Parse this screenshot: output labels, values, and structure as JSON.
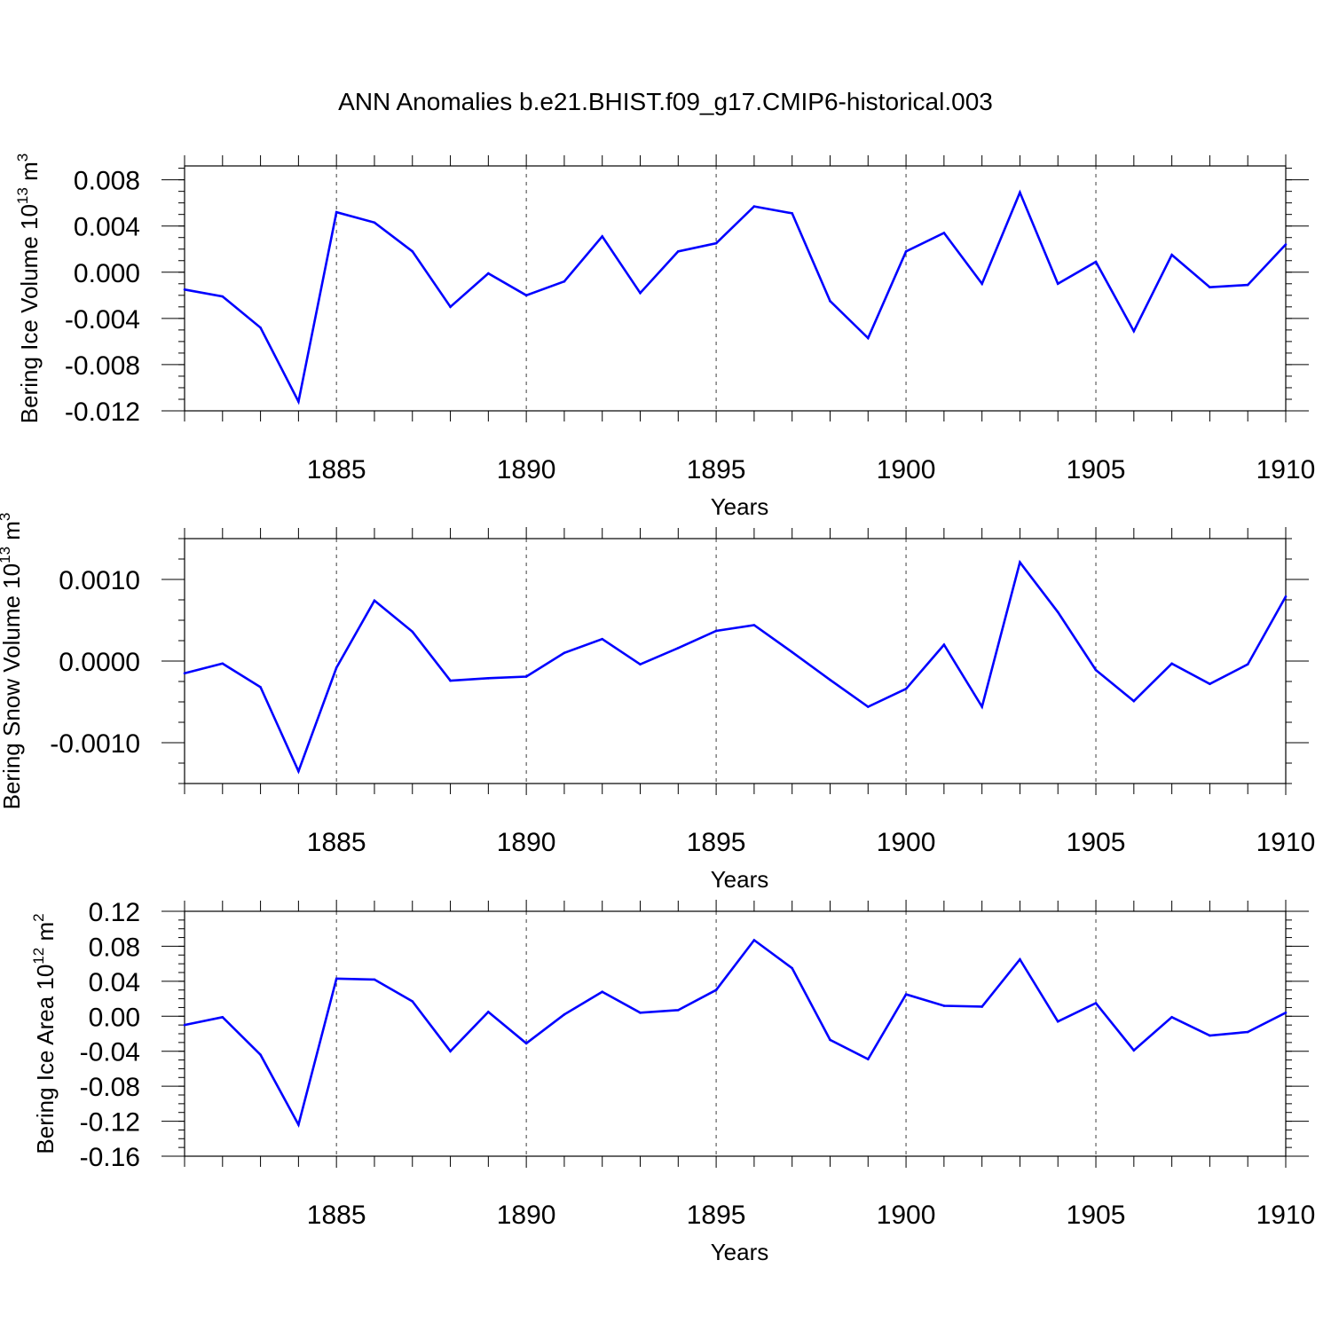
{
  "title": "ANN Anomalies b.e21.BHIST.f09_g17.CMIP6-historical.003",
  "colors": {
    "series": "#0000ff",
    "axis": "#000000",
    "grid": "#000000"
  },
  "chart_data": [
    {
      "type": "line",
      "xlabel": "Years",
      "ylabel": {
        "base": "Bering Ice Volume 10",
        "exp": "13",
        "unit": " m",
        "unit_exp": "3"
      },
      "xlim": [
        1881,
        1910
      ],
      "ylim": [
        -0.012,
        0.0092
      ],
      "yticks": [
        -0.012,
        -0.008,
        -0.004,
        0.0,
        0.004,
        0.008
      ],
      "ytick_labels": [
        "-0.012",
        "-0.008",
        "-0.004",
        "0.000",
        "0.004",
        "0.008"
      ],
      "xticks": [
        1885,
        1890,
        1895,
        1900,
        1905,
        1910
      ],
      "xtick_labels": [
        "1885",
        "1890",
        "1895",
        "1900",
        "1905",
        "1910"
      ],
      "grid": "vertical dashed at labeled years",
      "x": [
        1881,
        1882,
        1883,
        1884,
        1885,
        1886,
        1887,
        1888,
        1889,
        1890,
        1891,
        1892,
        1893,
        1894,
        1895,
        1896,
        1897,
        1898,
        1899,
        1900,
        1901,
        1902,
        1903,
        1904,
        1905,
        1906,
        1907,
        1908,
        1909,
        1910
      ],
      "values": [
        -0.0015,
        -0.0021,
        -0.0048,
        -0.0112,
        0.0052,
        0.0043,
        0.0018,
        -0.003,
        -0.0001,
        -0.002,
        -0.0008,
        0.0031,
        -0.0018,
        0.0018,
        0.0025,
        0.0057,
        0.0051,
        -0.0025,
        -0.0057,
        0.0018,
        0.0034,
        -0.001,
        0.0069,
        -0.001,
        0.0009,
        -0.0051,
        0.0015,
        -0.0013,
        -0.0011,
        0.0024
      ]
    },
    {
      "type": "line",
      "xlabel": "Years",
      "ylabel": {
        "base": "Bering Snow Volume 10",
        "exp": "13",
        "unit": " m",
        "unit_exp": "3"
      },
      "xlim": [
        1881,
        1910
      ],
      "ylim": [
        -0.0015,
        0.0015
      ],
      "yticks": [
        -0.001,
        0.0,
        0.001
      ],
      "ytick_labels": [
        "-0.0010",
        "0.0000",
        "0.0010"
      ],
      "xticks": [
        1885,
        1890,
        1895,
        1900,
        1905,
        1910
      ],
      "xtick_labels": [
        "1885",
        "1890",
        "1895",
        "1900",
        "1905",
        "1910"
      ],
      "grid": "vertical dashed at labeled years",
      "x": [
        1881,
        1882,
        1883,
        1884,
        1885,
        1886,
        1887,
        1888,
        1889,
        1890,
        1891,
        1892,
        1893,
        1894,
        1895,
        1896,
        1897,
        1898,
        1899,
        1900,
        1901,
        1902,
        1903,
        1904,
        1905,
        1906,
        1907,
        1908,
        1909,
        1910
      ],
      "values": [
        -0.00015,
        -3e-05,
        -0.00032,
        -0.00135,
        -8e-05,
        0.00074,
        0.00036,
        -0.00024,
        -0.00021,
        -0.00019,
        0.0001,
        0.00027,
        -4e-05,
        0.00016,
        0.00037,
        0.00044,
        0.00011,
        -0.00023,
        -0.00056,
        -0.00034,
        0.0002,
        -0.00056,
        0.00121,
        0.0006,
        -0.00011,
        -0.00049,
        -3e-05,
        -0.00028,
        -4e-05,
        0.00079
      ]
    },
    {
      "type": "line",
      "xlabel": "Years",
      "ylabel": {
        "base": "Bering Ice Area 10",
        "exp": "12",
        "unit": " m",
        "unit_exp": "2"
      },
      "xlim": [
        1881,
        1910
      ],
      "ylim": [
        -0.16,
        0.12
      ],
      "yticks": [
        -0.16,
        -0.12,
        -0.08,
        -0.04,
        0.0,
        0.04,
        0.08,
        0.12
      ],
      "ytick_labels": [
        "-0.16",
        "-0.12",
        "-0.08",
        "-0.04",
        "0.00",
        "0.04",
        "0.08",
        "0.12"
      ],
      "xticks": [
        1885,
        1890,
        1895,
        1900,
        1905,
        1910
      ],
      "xtick_labels": [
        "1885",
        "1890",
        "1895",
        "1900",
        "1905",
        "1910"
      ],
      "grid": "vertical dashed at labeled years",
      "x": [
        1881,
        1882,
        1883,
        1884,
        1885,
        1886,
        1887,
        1888,
        1889,
        1890,
        1891,
        1892,
        1893,
        1894,
        1895,
        1896,
        1897,
        1898,
        1899,
        1900,
        1901,
        1902,
        1903,
        1904,
        1905,
        1906,
        1907,
        1908,
        1909,
        1910
      ],
      "values": [
        -0.01,
        -0.001,
        -0.044,
        -0.124,
        0.043,
        0.042,
        0.017,
        -0.04,
        0.005,
        -0.031,
        0.002,
        0.028,
        0.004,
        0.007,
        0.03,
        0.087,
        0.055,
        -0.027,
        -0.049,
        0.025,
        0.012,
        0.011,
        0.065,
        -0.006,
        0.015,
        -0.039,
        -0.001,
        -0.022,
        -0.018,
        0.004
      ]
    }
  ]
}
